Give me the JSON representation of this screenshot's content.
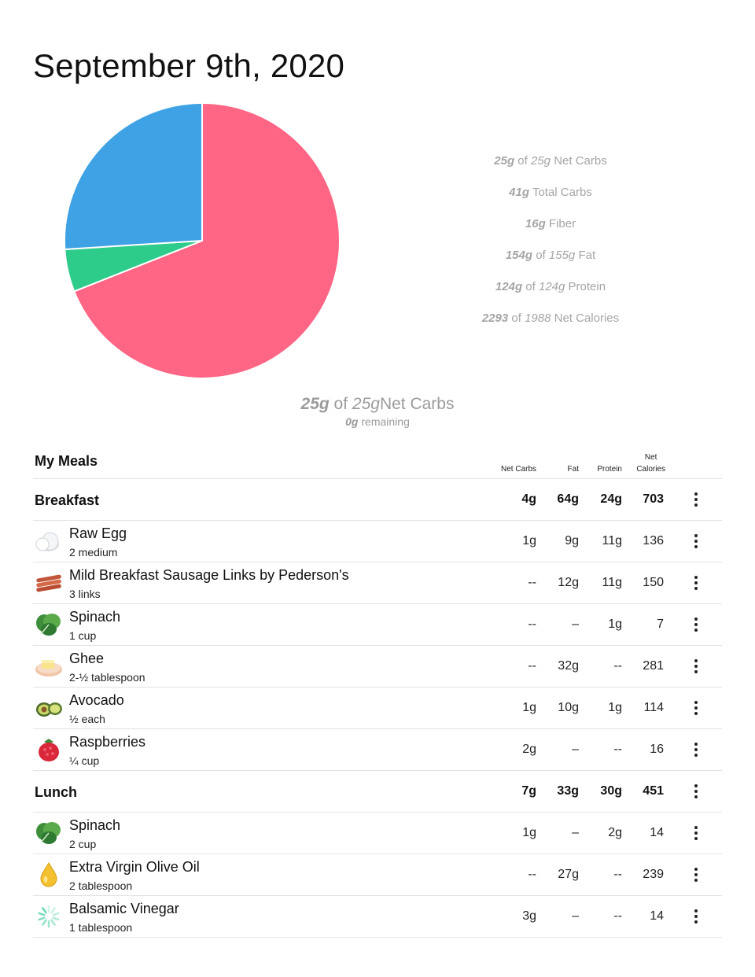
{
  "title": "September 9th, 2020",
  "pie": {
    "slices": [
      {
        "label": "Fat",
        "value": 69.0,
        "color": "#ff6584"
      },
      {
        "label": "Net Carbs",
        "value": 5.0,
        "color": "#2ecc8b"
      },
      {
        "label": "Protein",
        "value": 26.0,
        "color": "#3fa2e5"
      }
    ]
  },
  "stats": [
    {
      "a": "25g",
      "of": "of",
      "b": "25g",
      "label": "Net Carbs"
    },
    {
      "a": "41g",
      "of": "",
      "b": "",
      "label": "Total Carbs"
    },
    {
      "a": "16g",
      "of": "",
      "b": "",
      "label": "Fiber"
    },
    {
      "a": "154g",
      "of": "of",
      "b": "155g",
      "label": "Fat"
    },
    {
      "a": "124g",
      "of": "of",
      "b": "124g",
      "label": "Protein"
    },
    {
      "a": "2293",
      "of": "of",
      "b": "1988",
      "label": "Net Calories"
    }
  ],
  "summary": {
    "a": "25g",
    "of": "of",
    "b": "25g",
    "label": "Net Carbs",
    "remaining_value": "0g",
    "remaining_label": "remaining"
  },
  "meals_section": {
    "title": "My Meals",
    "columns": {
      "net_carbs": "Net Carbs",
      "fat": "Fat",
      "protein": "Protein",
      "net_calories_1": "Net",
      "net_calories_2": "Calories"
    }
  },
  "rows": [
    {
      "type": "meal",
      "name": "Breakfast",
      "carbs": "4g",
      "fat": "64g",
      "protein": "24g",
      "cal": "703"
    },
    {
      "type": "food",
      "icon": "egg-icon",
      "name": "Raw Egg",
      "qty": "2 medium",
      "carbs": "1g",
      "fat": "9g",
      "protein": "11g",
      "cal": "136"
    },
    {
      "type": "food",
      "icon": "sausage-icon",
      "name": "Mild Breakfast Sausage Links by Pederson's",
      "qty": "3 links",
      "carbs": "--",
      "fat": "12g",
      "protein": "11g",
      "cal": "150"
    },
    {
      "type": "food",
      "icon": "spinach-icon",
      "name": "Spinach",
      "qty": "1 cup",
      "carbs": "--",
      "fat": "–",
      "protein": "1g",
      "cal": "7"
    },
    {
      "type": "food",
      "icon": "ghee-icon",
      "name": "Ghee",
      "qty": "2-½ tablespoon",
      "carbs": "--",
      "fat": "32g",
      "protein": "--",
      "cal": "281"
    },
    {
      "type": "food",
      "icon": "avocado-icon",
      "name": "Avocado",
      "qty": "½ each",
      "carbs": "1g",
      "fat": "10g",
      "protein": "1g",
      "cal": "114"
    },
    {
      "type": "food",
      "icon": "raspberry-icon",
      "name": "Raspberries",
      "qty": "¼ cup",
      "carbs": "2g",
      "fat": "–",
      "protein": "--",
      "cal": "16"
    },
    {
      "type": "meal",
      "name": "Lunch",
      "carbs": "7g",
      "fat": "33g",
      "protein": "30g",
      "cal": "451"
    },
    {
      "type": "food",
      "icon": "spinach-icon",
      "name": "Spinach",
      "qty": "2 cup",
      "carbs": "1g",
      "fat": "–",
      "protein": "2g",
      "cal": "14"
    },
    {
      "type": "food",
      "icon": "oil-drop-icon",
      "name": "Extra Virgin Olive Oil",
      "qty": "2 tablespoon",
      "carbs": "--",
      "fat": "27g",
      "protein": "--",
      "cal": "239"
    },
    {
      "type": "food",
      "icon": "loading-spinner-icon",
      "name": "Balsamic Vinegar",
      "qty": "1 tablespoon",
      "carbs": "3g",
      "fat": "–",
      "protein": "--",
      "cal": "14"
    }
  ]
}
